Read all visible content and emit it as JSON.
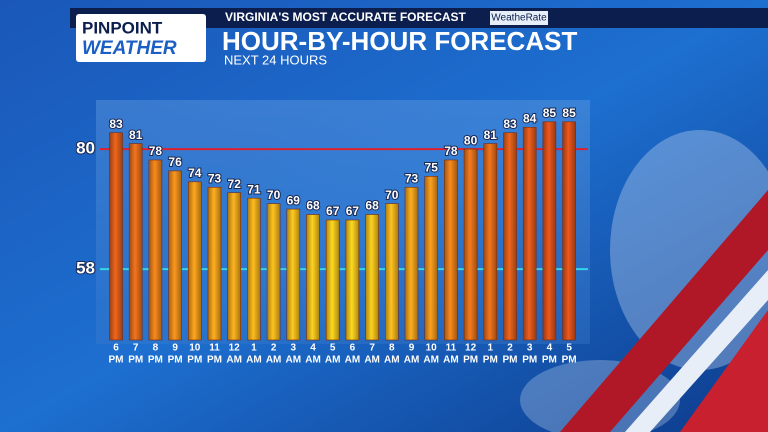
{
  "header": {
    "logo_top": "PINPOINT",
    "logo_bottom": "WEATHER",
    "tagline": "VIRGINIA'S MOST ACCURATE FORECAST",
    "badge": "WeatheRate",
    "title": "HOUR-BY-HOUR FORECAST",
    "subtitle": "NEXT 24 HOURS"
  },
  "chart_data": {
    "type": "bar",
    "categories": [
      "6",
      "7",
      "8",
      "9",
      "10",
      "11",
      "12",
      "1",
      "2",
      "3",
      "4",
      "5",
      "6",
      "7",
      "8",
      "9",
      "10",
      "11",
      "12",
      "1",
      "2",
      "3",
      "4",
      "5"
    ],
    "periods": [
      "PM",
      "PM",
      "PM",
      "PM",
      "PM",
      "PM",
      "AM",
      "AM",
      "AM",
      "AM",
      "AM",
      "AM",
      "AM",
      "AM",
      "AM",
      "AM",
      "AM",
      "AM",
      "PM",
      "PM",
      "PM",
      "PM",
      "PM",
      "PM"
    ],
    "values": [
      83,
      81,
      78,
      76,
      74,
      73,
      72,
      71,
      70,
      69,
      68,
      67,
      67,
      68,
      70,
      73,
      75,
      78,
      80,
      81,
      83,
      84,
      85,
      85
    ],
    "low_color": "#f4c51c",
    "high_color": "#d8501a",
    "ylim": [
      45,
      89
    ],
    "reference_lines": [
      {
        "value": 80,
        "color": "#e0202c"
      },
      {
        "value": 58,
        "color": "#33d6e6"
      }
    ]
  }
}
